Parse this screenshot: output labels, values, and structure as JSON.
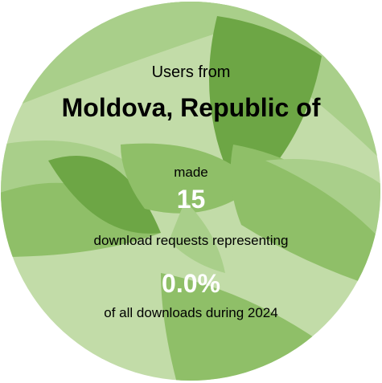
{
  "infographic": {
    "users_from_label": "Users from",
    "country": "Moldova, Republic of",
    "made_label": "made",
    "download_count": "15",
    "representing_label": "download requests representing",
    "percent": "0.0%",
    "period_label": "of all downloads during 2024"
  },
  "colors": {
    "base": "#c2dca8",
    "light": "#a9cf8a",
    "medium": "#8fbf68",
    "dark": "#6da645",
    "highlight_text": "#ffffff"
  }
}
